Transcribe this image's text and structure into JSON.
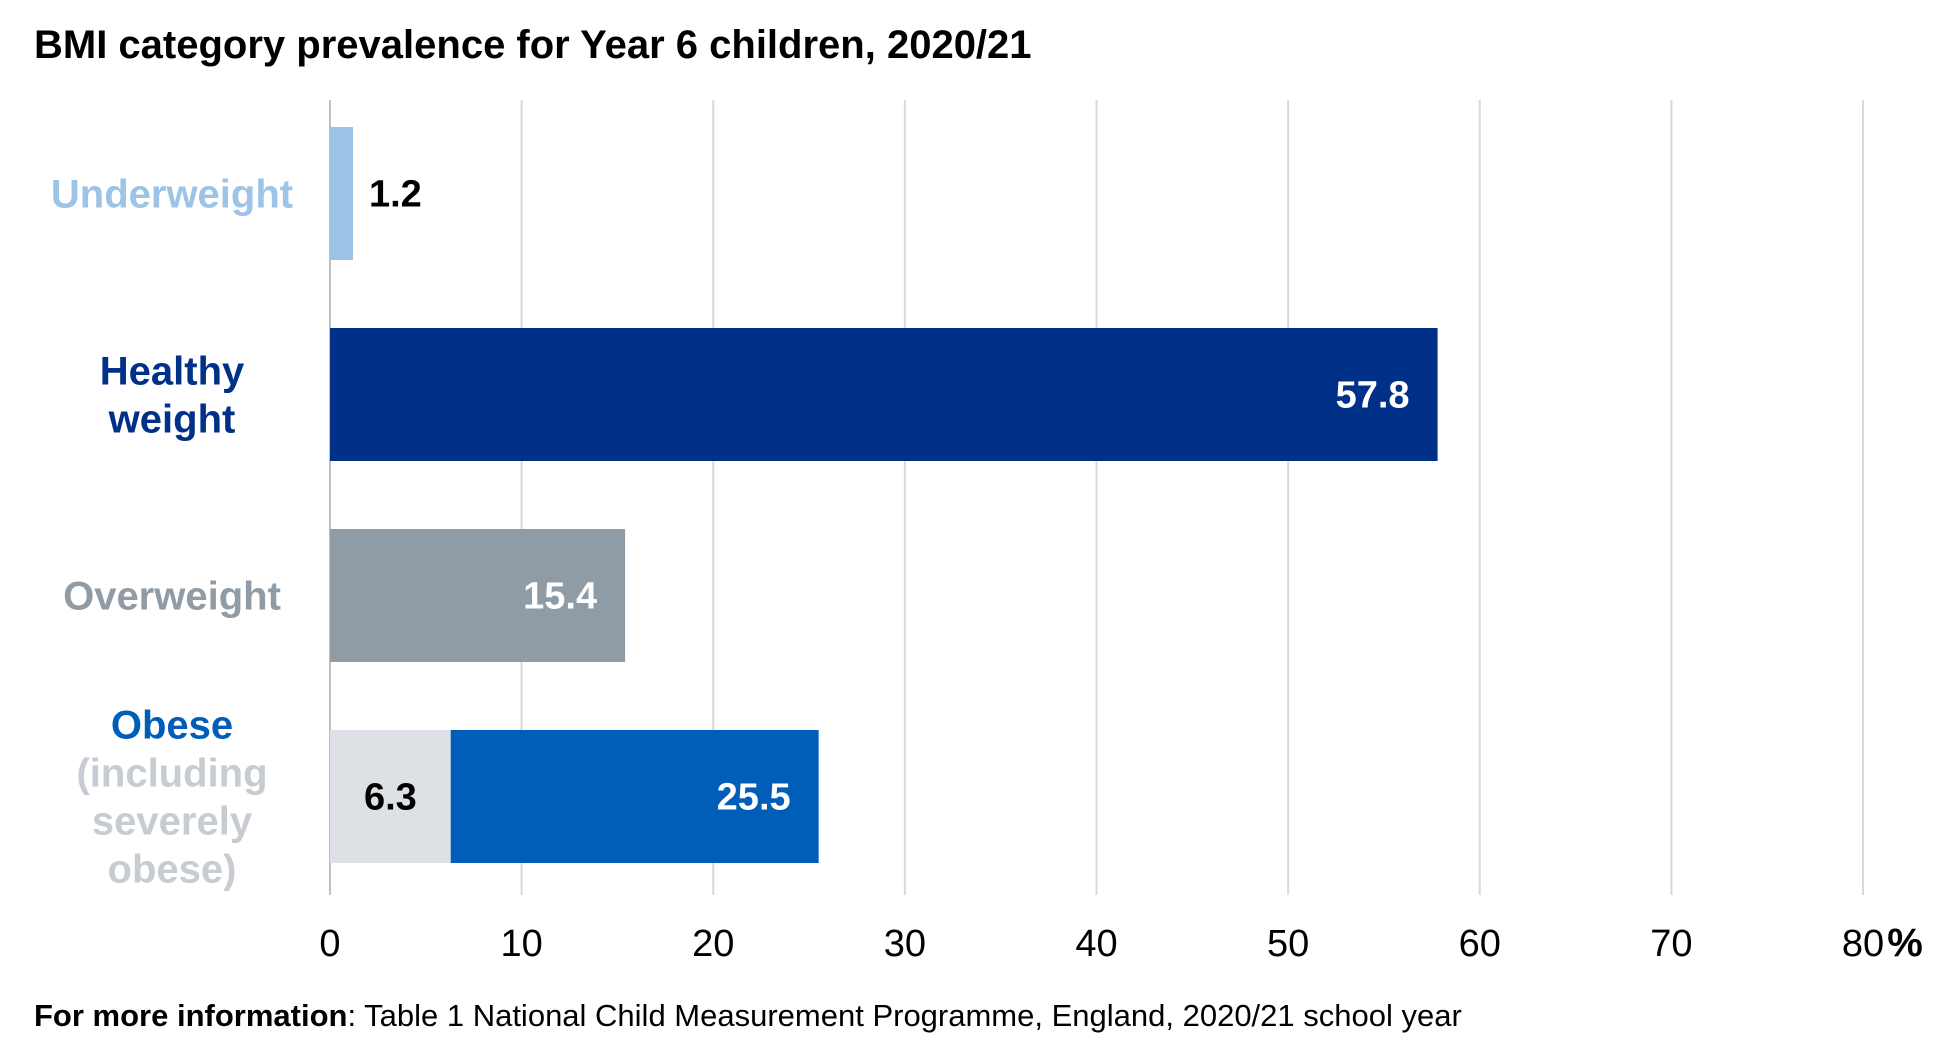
{
  "chart_data": {
    "type": "bar",
    "orientation": "horizontal",
    "title": "BMI category prevalence for Year 6 children, 2020/21",
    "unit": "%",
    "xlim": [
      0,
      80
    ],
    "x_ticks": [
      "0",
      "10",
      "20",
      "30",
      "40",
      "50",
      "60",
      "70",
      "80"
    ],
    "grid": "vertical",
    "categories": [
      {
        "label_lines": [
          "Underweight"
        ],
        "label_colors": [
          "#9dc3e6"
        ],
        "segments": [
          {
            "value": 1.2,
            "label": "1.2",
            "color": "#9dc3e6",
            "label_color": "#000000",
            "label_position": "outside"
          }
        ]
      },
      {
        "label_lines": [
          "Healthy",
          "weight"
        ],
        "label_colors": [
          "#003087",
          "#003087"
        ],
        "segments": [
          {
            "value": 57.8,
            "label": "57.8",
            "color": "#003087",
            "label_color": "#ffffff",
            "label_position": "inside-end"
          }
        ]
      },
      {
        "label_lines": [
          "Overweight"
        ],
        "label_colors": [
          "#8f9ba5"
        ],
        "segments": [
          {
            "value": 15.4,
            "label": "15.4",
            "color": "#8f9ba5",
            "label_color": "#ffffff",
            "label_position": "inside-end"
          }
        ]
      },
      {
        "label_lines": [
          "Obese",
          "(including",
          "severely",
          "obese)"
        ],
        "label_colors": [
          "#005eb8",
          "#c6ccd2",
          "#c6ccd2",
          "#c6ccd2"
        ],
        "segments": [
          {
            "value": 25.5,
            "label": "25.5",
            "color": "#005eb8",
            "label_color": "#ffffff",
            "label_position": "inside-end"
          },
          {
            "value": 6.3,
            "label": "6.3",
            "color": "#dde1e5",
            "label_color": "#000000",
            "label_position": "inside-center",
            "overlay": true
          }
        ]
      }
    ],
    "colors": {
      "gridline": "#d9d9d9",
      "axis": "#bfbfbf"
    }
  },
  "footnote": {
    "bold": "For more information",
    "text": ": Table 1 National Child Measurement Programme, England, 2020/21 school year"
  }
}
